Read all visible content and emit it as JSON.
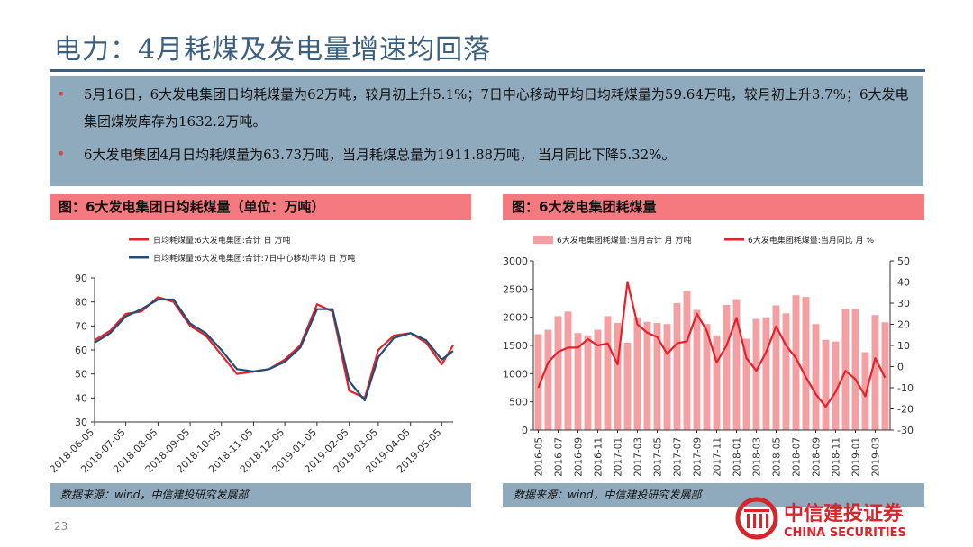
{
  "page": {
    "title": "电力：4月耗煤及发电量增速均回落",
    "bullets": [
      "5月16日，6大发电集团日均耗煤量为62万吨，较月初上升5.1%；7日中心移动平均日均耗煤量为59.64万吨，较月初上升3.7%；6大发电集团煤炭库存为1632.2万吨。",
      "6大发电集团4月日均耗煤量为63.73万吨，当月耗煤总量为1911.88万吨， 当月同比下降5.32%。"
    ],
    "page_number": "23",
    "logo": {
      "cn": "中信建投证券",
      "en": "CHINA SECURITIES"
    },
    "colors": {
      "accent_red": "#e8202a",
      "navy": "#1f4e79",
      "panel_head": "#f47a80",
      "band": "#8fa9bd",
      "bar": "#f4a0a3"
    }
  },
  "left": {
    "head": "图：6大发电集团日均耗煤量（单位：万吨）",
    "source": "数据来源：wind，中信建投研究发展部"
  },
  "right": {
    "head": "图：6大发电集团耗煤量",
    "source": "数据来源：wind，中信建投研究发展部"
  },
  "chart_data": [
    {
      "type": "line",
      "legend_position": "top",
      "grid": false,
      "ylim": [
        30,
        90
      ],
      "yticks": [
        30,
        40,
        50,
        60,
        70,
        80,
        90
      ],
      "xticks": [
        "2018-06-05",
        "2018-07-05",
        "2018-08-05",
        "2018-09-05",
        "2018-10-05",
        "2018-11-05",
        "2018-12-05",
        "2019-01-05",
        "2019-02-05",
        "2019-03-05",
        "2019-04-05",
        "2019-05-05"
      ],
      "x": [
        "2018-06-05",
        "2018-06-20",
        "2018-07-05",
        "2018-07-20",
        "2018-08-05",
        "2018-08-20",
        "2018-09-05",
        "2018-09-20",
        "2018-10-05",
        "2018-10-20",
        "2018-11-05",
        "2018-11-20",
        "2018-12-05",
        "2018-12-20",
        "2019-01-05",
        "2019-01-20",
        "2019-02-05",
        "2019-02-20",
        "2019-03-05",
        "2019-03-20",
        "2019-04-05",
        "2019-04-20",
        "2019-05-05",
        "2019-05-16"
      ],
      "series": [
        {
          "name": "日均耗煤量:6大发电集团:合计 日 万吨",
          "color": "#e8202a",
          "values": [
            64,
            68,
            75,
            76,
            82,
            80,
            70,
            66,
            58,
            50,
            51,
            52,
            56,
            62,
            79,
            76,
            43,
            40,
            60,
            66,
            67,
            63,
            54,
            62
          ]
        },
        {
          "name": "日均耗煤量:6大发电集团:合计:7日中心移动平均 日 万吨",
          "color": "#1f4e79",
          "values": [
            63,
            67,
            74,
            77,
            81,
            81,
            71,
            67,
            60,
            52,
            51,
            52,
            55,
            61,
            77,
            77,
            47,
            39,
            57,
            65,
            67,
            64,
            56,
            59.6
          ]
        }
      ]
    },
    {
      "type": "bar",
      "legend_position": "top",
      "grid": false,
      "ylim": [
        0,
        3000
      ],
      "y2lim": [
        -30,
        50
      ],
      "yticks": [
        0,
        500,
        1000,
        1500,
        2000,
        2500,
        3000
      ],
      "y2ticks": [
        -30,
        -20,
        -10,
        0,
        10,
        20,
        30,
        40,
        50
      ],
      "xticks": [
        "2016-05",
        "2016-07",
        "2016-09",
        "2016-11",
        "2017-01",
        "2017-03",
        "2017-05",
        "2017-07",
        "2017-09",
        "2017-11",
        "2018-01",
        "2018-03",
        "2018-05",
        "2018-07",
        "2018-09",
        "2018-11",
        "2019-01",
        "2019-03"
      ],
      "categories": [
        "2016-05",
        "2016-06",
        "2016-07",
        "2016-08",
        "2016-09",
        "2016-10",
        "2016-11",
        "2016-12",
        "2017-01",
        "2017-02",
        "2017-03",
        "2017-04",
        "2017-05",
        "2017-06",
        "2017-07",
        "2017-08",
        "2017-09",
        "2017-10",
        "2017-11",
        "2017-12",
        "2018-01",
        "2018-02",
        "2018-03",
        "2018-04",
        "2018-05",
        "2018-06",
        "2018-07",
        "2018-08",
        "2018-09",
        "2018-10",
        "2018-11",
        "2018-12",
        "2019-01",
        "2019-02",
        "2019-03",
        "2019-04"
      ],
      "series": [
        {
          "name": "6大发电集团耗煤量:当月合计 月 万吨",
          "type": "bar",
          "color": "#f4a0a3",
          "values": [
            1700,
            1780,
            2020,
            2100,
            1720,
            1680,
            1780,
            2020,
            1900,
            1550,
            1990,
            1920,
            1900,
            1880,
            2250,
            2460,
            2130,
            1880,
            1680,
            2220,
            2320,
            1620,
            1970,
            2000,
            2210,
            2070,
            2390,
            2360,
            1880,
            1600,
            1570,
            2150,
            2150,
            1380,
            2040,
            1910
          ]
        },
        {
          "name": "6大发电集团耗煤量:当月同比 月 %",
          "type": "line",
          "axis": "right",
          "color": "#e8202a",
          "values": [
            -10,
            2,
            7,
            9,
            9,
            13,
            10,
            11,
            1,
            40,
            20,
            16,
            14,
            6,
            11,
            12,
            25,
            17,
            2,
            10,
            23,
            4,
            -2,
            7,
            19,
            10,
            4,
            -5,
            -13,
            -19,
            -12,
            -2,
            -6,
            -14,
            4,
            -5.3
          ]
        }
      ]
    }
  ]
}
